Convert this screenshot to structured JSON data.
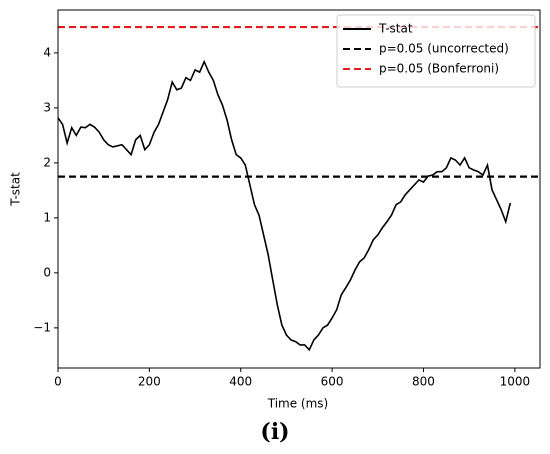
{
  "chart_data": {
    "type": "line",
    "xlabel": "Time (ms)",
    "ylabel": "T-stat",
    "caption": "(i)",
    "xlim": [
      0,
      1055
    ],
    "ylim": [
      -1.73,
      4.78
    ],
    "xticks": [
      0,
      200,
      400,
      600,
      800,
      1000
    ],
    "yticks": [
      {
        "value": -1,
        "label": "−1"
      },
      0,
      1,
      2,
      3,
      4
    ],
    "legend": "upper right",
    "series": [
      {
        "name": "T-stat",
        "color": "#000000",
        "x": [
          0,
          10,
          20,
          30,
          40,
          50,
          60,
          70,
          80,
          90,
          100,
          110,
          120,
          140,
          150,
          160,
          170,
          180,
          190,
          200,
          210,
          220,
          240,
          250,
          260,
          270,
          280,
          290,
          300,
          310,
          320,
          330,
          340,
          350,
          360,
          370,
          380,
          390,
          400,
          410,
          420,
          430,
          440,
          450,
          460,
          470,
          480,
          490,
          500,
          510,
          520,
          530,
          540,
          550,
          560,
          570,
          580,
          590,
          600,
          610,
          620,
          630,
          640,
          650,
          660,
          670,
          680,
          690,
          700,
          710,
          720,
          730,
          740,
          750,
          760,
          770,
          780,
          790,
          800,
          810,
          820,
          830,
          840,
          850,
          860,
          870,
          880,
          890,
          900,
          910,
          920,
          930,
          940,
          950,
          960,
          970,
          980,
          990
        ],
        "values": [
          2.82,
          2.7,
          2.36,
          2.64,
          2.5,
          2.65,
          2.64,
          2.7,
          2.65,
          2.56,
          2.42,
          2.33,
          2.29,
          2.33,
          2.24,
          2.15,
          2.42,
          2.5,
          2.24,
          2.33,
          2.55,
          2.7,
          3.15,
          3.47,
          3.33,
          3.36,
          3.55,
          3.5,
          3.69,
          3.65,
          3.84,
          3.65,
          3.5,
          3.24,
          3.05,
          2.78,
          2.42,
          2.15,
          2.09,
          1.96,
          1.6,
          1.24,
          1.05,
          0.69,
          0.33,
          -0.13,
          -0.58,
          -0.95,
          -1.13,
          -1.22,
          -1.25,
          -1.31,
          -1.31,
          -1.4,
          -1.22,
          -1.13,
          -1.0,
          -0.95,
          -0.82,
          -0.67,
          -0.4,
          -0.27,
          -0.13,
          0.05,
          0.2,
          0.27,
          0.42,
          0.6,
          0.69,
          0.82,
          0.93,
          1.05,
          1.24,
          1.29,
          1.42,
          1.51,
          1.6,
          1.69,
          1.65,
          1.76,
          1.78,
          1.84,
          1.84,
          1.91,
          2.09,
          2.05,
          1.96,
          2.09,
          1.91,
          1.87,
          1.84,
          1.78,
          1.96,
          1.51,
          1.33,
          1.15,
          0.93,
          1.27
        ]
      }
    ],
    "hlines": [
      {
        "name": "p=0.05 (uncorrected)",
        "color": "#000000",
        "value": 1.75
      },
      {
        "name": "p=0.05 (Bonferroni)",
        "color": "#e41a1c",
        "value": 4.47
      }
    ]
  }
}
